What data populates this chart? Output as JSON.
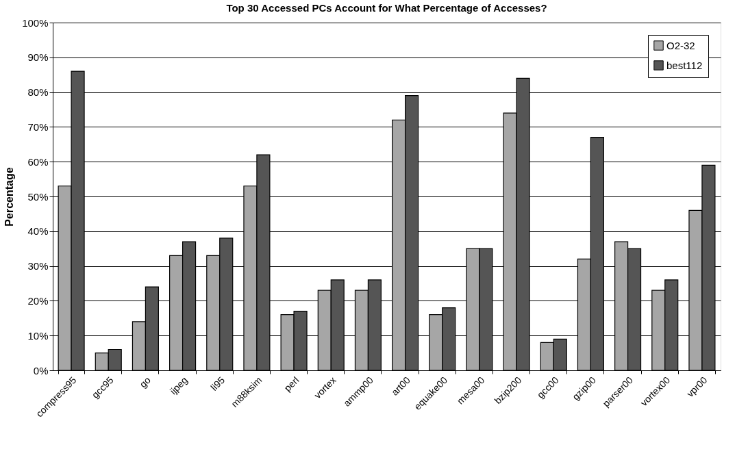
{
  "chart_data": {
    "type": "bar",
    "title": "Top 30 Accessed PCs Account for What Percentage of Accesses?",
    "ylabel": "Percentage",
    "categories": [
      "compress95",
      "gcc95",
      "go",
      "ijpeg",
      "li95",
      "m88ksim",
      "perl",
      "vortex",
      "ammp00",
      "art00",
      "equake00",
      "mesa00",
      "bzip200",
      "gcc00",
      "gzip00",
      "parser00",
      "vortex00",
      "vpr00"
    ],
    "series": [
      {
        "name": "O2-32",
        "color": "#a6a6a6",
        "values": [
          53,
          5,
          14,
          33,
          33,
          53,
          16,
          23,
          23,
          72,
          16,
          35,
          74,
          8,
          32,
          37,
          23,
          46
        ]
      },
      {
        "name": "best112",
        "color": "#555555",
        "values": [
          86,
          6,
          24,
          37,
          38,
          62,
          17,
          26,
          26,
          79,
          18,
          35,
          84,
          9,
          67,
          35,
          26,
          59
        ]
      }
    ],
    "ylim": [
      0,
      100
    ],
    "yticks": [
      {
        "value": 0,
        "label": "0%"
      },
      {
        "value": 10,
        "label": "10%"
      },
      {
        "value": 20,
        "label": "20%"
      },
      {
        "value": 30,
        "label": "30%"
      },
      {
        "value": 40,
        "label": "40%"
      },
      {
        "value": 50,
        "label": "50%"
      },
      {
        "value": 60,
        "label": "60%"
      },
      {
        "value": 70,
        "label": "70%"
      },
      {
        "value": 80,
        "label": "80%"
      },
      {
        "value": 90,
        "label": "90%"
      },
      {
        "value": 100,
        "label": "100%"
      }
    ],
    "grid": "y",
    "legend": "top right"
  }
}
